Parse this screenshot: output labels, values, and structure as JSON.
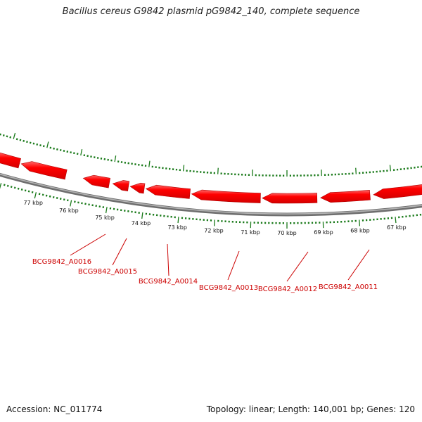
{
  "title": "Bacillus cereus G9842 plasmid pG9842_140, complete sequence",
  "footer": {
    "accession": "Accession: NC_011774",
    "summary": "Topology: linear; Length: 140,001 bp; Genes: 120"
  },
  "colors": {
    "backbone": "#8c8c8c",
    "tick": "#1a7a1a",
    "gene_fill": "#ff0000",
    "gene_edge": "#b00000",
    "gene_label": "#cc0000"
  },
  "scale_labels": [
    "77 kbp",
    "76 kbp",
    "75 kbp",
    "74 kbp",
    "73 kbp",
    "72 kbp",
    "71 kbp",
    "70 kbp",
    "69 kbp",
    "68 kbp",
    "67 kbp"
  ],
  "gene_labels": [
    "BCG9842_A0016",
    "BCG9842_A0015",
    "BCG9842_A0014",
    "BCG9842_A0013",
    "BCG9842_A0012",
    "BCG9842_A0011"
  ]
}
